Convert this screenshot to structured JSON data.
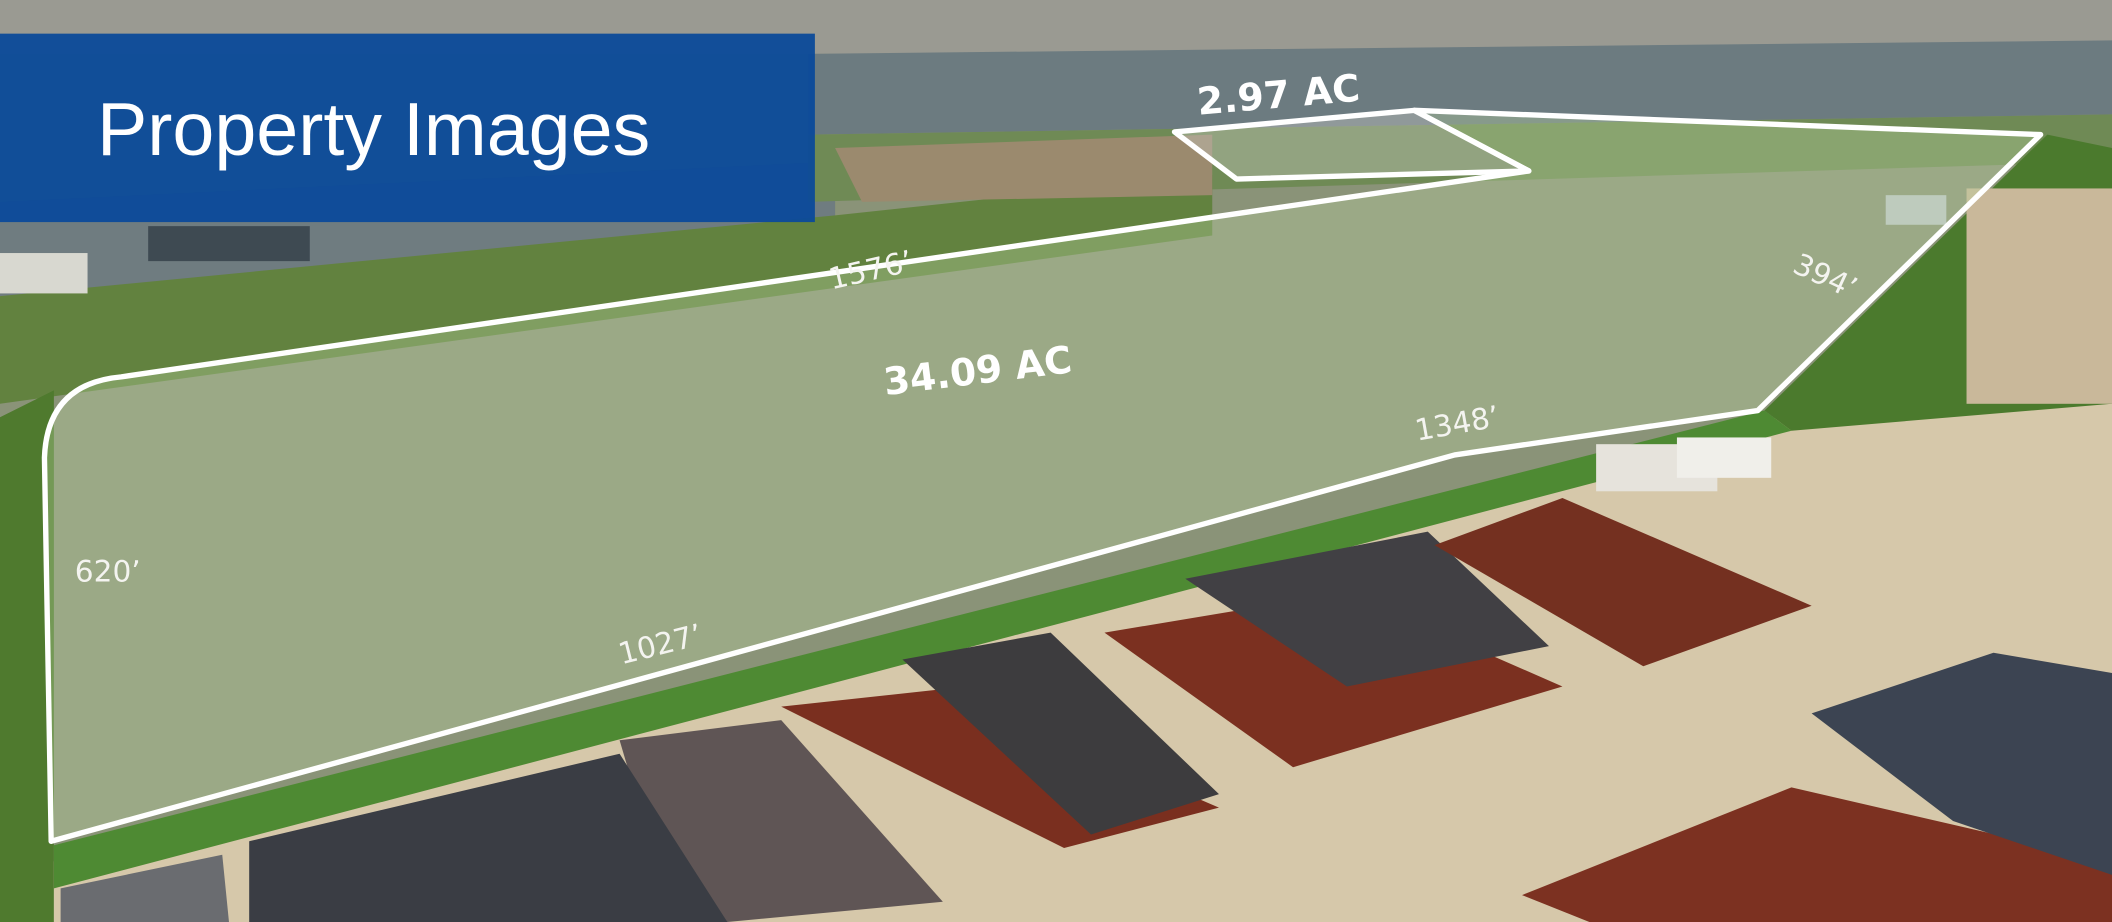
{
  "header": {
    "title": "Property Images"
  },
  "parcels": [
    {
      "label": "2.97 AC"
    },
    {
      "label": "34.09 AC",
      "dimensions": [
        "1576’",
        "394’",
        "1348’",
        "1027’",
        "620’"
      ]
    }
  ]
}
